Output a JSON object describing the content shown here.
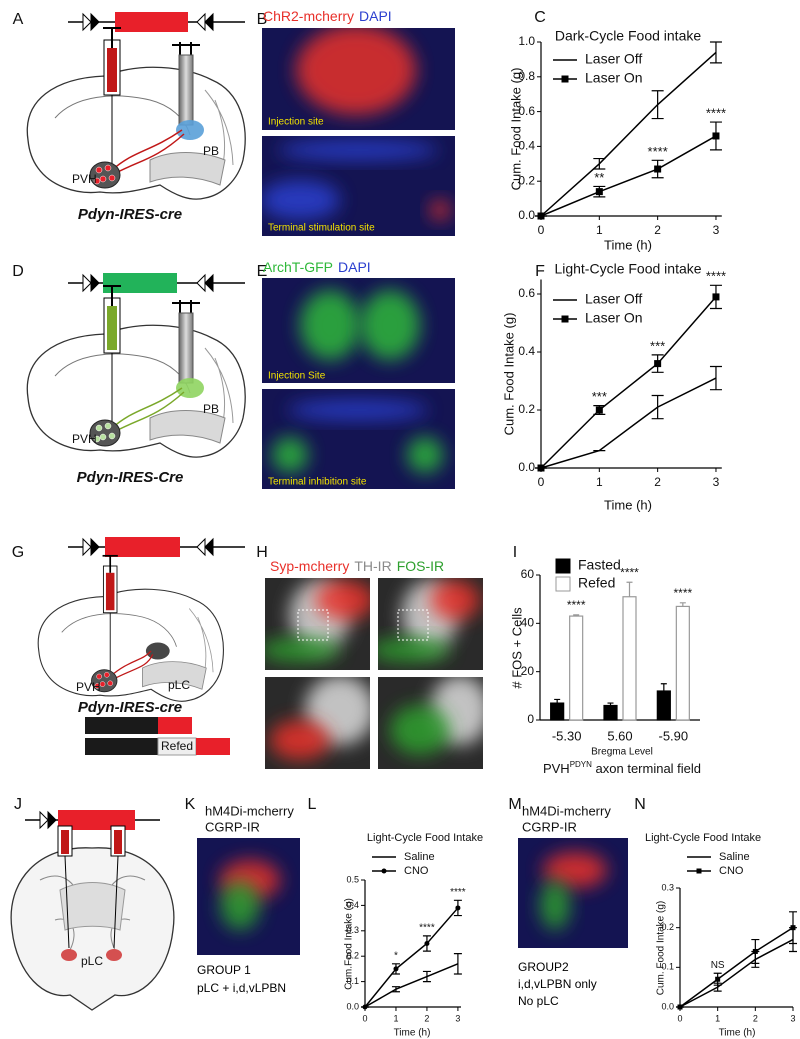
{
  "panel_labels": [
    "A",
    "B",
    "C",
    "D",
    "E",
    "F",
    "G",
    "H",
    "I",
    "J",
    "K",
    "L",
    "M",
    "N"
  ],
  "diagrams": {
    "A": {
      "labels": [
        "PVH",
        "PB"
      ],
      "genotype": "Pdyn-IRES-cre"
    },
    "D": {
      "labels": [
        "PVH",
        "PB"
      ],
      "genotype": "Pdyn-IRES-Cre"
    },
    "G": {
      "labels": [
        "PVH",
        "pLC"
      ],
      "genotype": "Pdyn-IRES-cre",
      "bar_label": "Refed"
    },
    "J": {
      "labels": [
        "pLC"
      ]
    }
  },
  "images": {
    "B": {
      "stains": [
        {
          "text": "ChR2-mcherry",
          "color": "#e8302a"
        },
        {
          "text": "DAPI",
          "color": "#2b3fcf"
        }
      ],
      "captions": [
        "Injection site",
        "Terminal stimulation site"
      ]
    },
    "E": {
      "stains": [
        {
          "text": "ArchT-GFP",
          "color": "#2fb83a"
        },
        {
          "text": "DAPI",
          "color": "#2b3fcf"
        }
      ],
      "captions": [
        "Injection Site",
        "Terminal inhibition site"
      ]
    },
    "H": {
      "stains": [
        {
          "text": "Syp-mcherry",
          "color": "#e8302a"
        },
        {
          "text": "TH-IR",
          "color": "#8a8a8a"
        },
        {
          "text": "FOS-IR",
          "color": "#2ea02e"
        }
      ]
    },
    "K": {
      "stains": [
        {
          "text": "hM4Di-mcherry",
          "color": "#e8302a"
        },
        {
          "text": "CGRP-IR",
          "color": "#2ea02e"
        }
      ],
      "captions": [
        "GROUP 1",
        "pLC + i,d,vLPBN"
      ]
    },
    "M": {
      "stains": [
        {
          "text": "hM4Di-mcherry",
          "color": "#e8302a"
        },
        {
          "text": "CGRP-IR",
          "color": "#2ea02e"
        }
      ],
      "captions": [
        "GROUP2",
        "i,d,vLPBN only",
        "No pLC"
      ]
    }
  },
  "chart_data": [
    {
      "type": "line",
      "title": "Dark-Cycle Food intake",
      "xlabel": "Time (h)",
      "ylabel": "Cum. Food Intake (g)",
      "x": [
        0,
        1,
        2,
        3
      ],
      "xlim": [
        0,
        3.1
      ],
      "xticks": [
        0,
        1,
        2,
        3
      ],
      "ylim": [
        0,
        1
      ],
      "yticks": [
        {
          "value": 0,
          "label": "0.0"
        },
        0.2,
        0.4,
        0.6,
        0.8,
        {
          "value": 1,
          "label": "1.0"
        }
      ],
      "series": [
        {
          "name": "Laser Off",
          "color": "#000000",
          "marker": null,
          "values": [
            0,
            0.3,
            0.64,
            0.94
          ],
          "errors": [
            0,
            0.03,
            0.08,
            0.06
          ]
        },
        {
          "name": "Laser On",
          "color": "#000000",
          "marker": "square",
          "values": [
            0,
            0.14,
            0.27,
            0.46
          ],
          "errors": [
            0,
            0.03,
            0.05,
            0.08
          ],
          "significance": [
            null,
            "**",
            "****",
            "****"
          ]
        }
      ]
    },
    {
      "type": "line",
      "title": "Light-Cycle Food intake",
      "xlabel": "Time (h)",
      "ylabel": "Cum. Food Intake (g)",
      "x": [
        0,
        1,
        2,
        3
      ],
      "xlim": [
        0,
        3.1
      ],
      "xticks": [
        0,
        1,
        2,
        3
      ],
      "ylim": [
        0,
        0.65
      ],
      "yticks": [
        {
          "value": 0,
          "label": "0.0"
        },
        0.2,
        0.4,
        0.6
      ],
      "series": [
        {
          "name": "Laser Off",
          "color": "#000000",
          "marker": null,
          "values": [
            0,
            0.06,
            0.21,
            0.31
          ],
          "errors": [
            0,
            0,
            0.04,
            0.04
          ]
        },
        {
          "name": "Laser On",
          "color": "#000000",
          "marker": "square",
          "values": [
            0,
            0.2,
            0.36,
            0.59
          ],
          "errors": [
            0,
            0.015,
            0.03,
            0.04
          ],
          "significance": [
            null,
            "***",
            "***",
            "****"
          ]
        }
      ]
    },
    {
      "type": "bar",
      "xlabel": "Bregma Level",
      "ylabel": "# FOS + Cells",
      "caption": {
        "base": "PVH",
        "sup": "PDYN",
        "rest": " axon terminal field"
      },
      "categories": [
        "-5.30",
        "5.60",
        "-5.90"
      ],
      "ylim": [
        0,
        60
      ],
      "yticks": [
        0,
        20,
        40,
        60
      ],
      "series": [
        {
          "name": "Fasted",
          "color": "#000000",
          "edgecolor": "#000000",
          "values": [
            7,
            6,
            12
          ],
          "errors": [
            1.5,
            1,
            3
          ]
        },
        {
          "name": "Refed",
          "color": "#ffffff",
          "edgecolor": "#999999",
          "values": [
            43,
            51,
            47
          ],
          "errors": [
            0.5,
            6,
            1.5
          ],
          "significance": [
            "****",
            "****",
            "****"
          ]
        }
      ]
    },
    {
      "type": "line",
      "title": "Light-Cycle Food Intake",
      "xlabel": "Time (h)",
      "ylabel": "Cum.Food Intake (g)",
      "x": [
        0,
        1,
        2,
        3
      ],
      "xlim": [
        0,
        3.1
      ],
      "xticks": [
        0,
        1,
        2,
        3
      ],
      "ylim": [
        0,
        0.5
      ],
      "yticks": [
        {
          "value": 0,
          "label": "0.0"
        },
        0.1,
        0.2,
        0.3,
        0.4,
        0.5
      ],
      "series": [
        {
          "name": "Saline",
          "color": "#000000",
          "marker": null,
          "values": [
            0,
            0.07,
            0.12,
            0.17
          ],
          "errors": [
            0,
            0.01,
            0.02,
            0.04
          ]
        },
        {
          "name": "CNO",
          "color": "#000000",
          "marker": "circle",
          "values": [
            0,
            0.15,
            0.25,
            0.39
          ],
          "errors": [
            0,
            0.02,
            0.03,
            0.03
          ],
          "significance": [
            null,
            "*",
            "****",
            "****"
          ]
        }
      ]
    },
    {
      "type": "line",
      "title": "Light-Cycle Food Intake",
      "xlabel": "Time (h)",
      "ylabel": "Cum. Food Intake (g)",
      "x": [
        0,
        1,
        2,
        3
      ],
      "xlim": [
        0,
        3
      ],
      "xticks": [
        0,
        1,
        2,
        3
      ],
      "ylim": [
        0,
        0.3
      ],
      "yticks": [
        {
          "value": 0,
          "label": "0.0"
        },
        0.1,
        0.2,
        0.3
      ],
      "series": [
        {
          "name": "Saline",
          "color": "#000000",
          "marker": null,
          "values": [
            0,
            0.05,
            0.12,
            0.17
          ],
          "errors": [
            0,
            0.01,
            0.02,
            0.03
          ]
        },
        {
          "name": "CNO",
          "color": "#000000",
          "marker": "square",
          "values": [
            0,
            0.07,
            0.14,
            0.2
          ],
          "errors": [
            0,
            0.015,
            0.03,
            0.04
          ],
          "significance": [
            null,
            "NS",
            null,
            null
          ]
        }
      ]
    }
  ]
}
